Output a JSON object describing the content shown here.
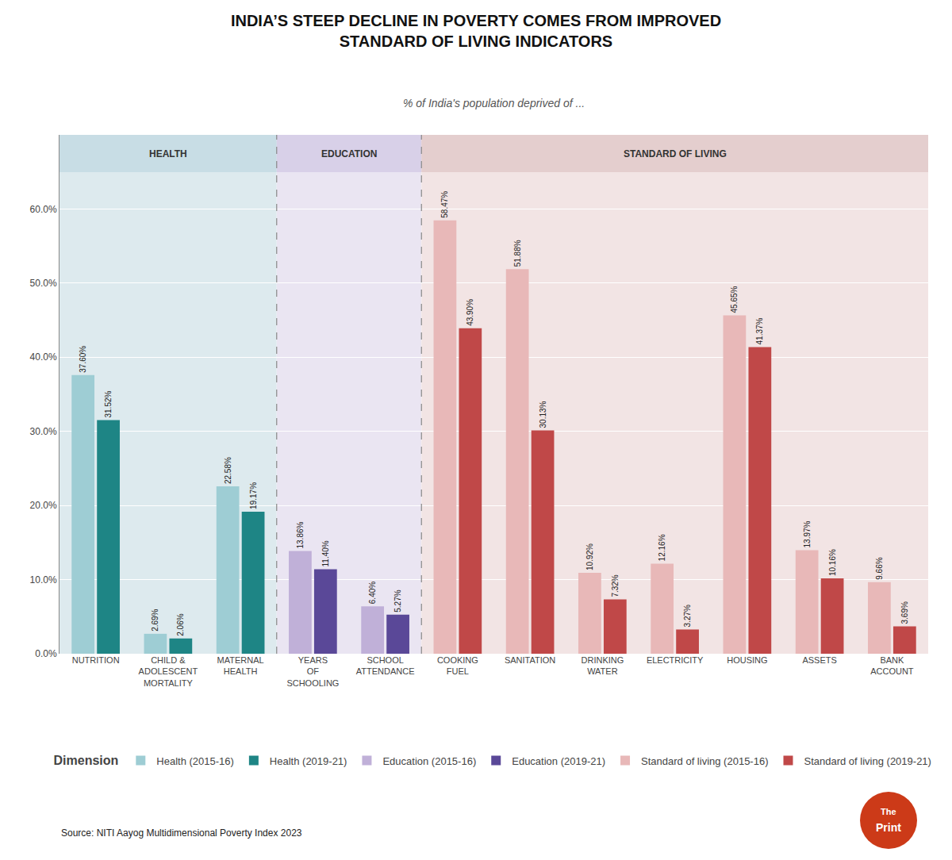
{
  "chart_data": {
    "type": "bar",
    "title": "INDIA’S STEEP DECLINE IN POVERTY COMES FROM IMPROVED\nSTANDARD OF LIVING INDICATORS",
    "subtitle": "% of India's population deprived of ...",
    "source": "Source: NITI Aayog Multidimensional Poverty Index 2023",
    "logo_text": [
      "The",
      "Print"
    ],
    "legend_title": "Dimension",
    "categories": [
      "NUTRITION",
      "CHILD &\nADOLESCENT\nMORTALITY",
      "MATERNAL\nHEALTH",
      "YEARS\nOF\nSCHOOLING",
      "SCHOOL\nATTENDANCE",
      "COOKING\nFUEL",
      "SANITATION",
      "DRINKING\nWATER",
      "ELECTRICITY",
      "HOUSING",
      "ASSETS",
      "BANK\nACCOUNT"
    ],
    "series": [
      {
        "name": "Health (2015-16)",
        "color": "#9ecdd4",
        "values": [
          37.6,
          2.69,
          22.58,
          null,
          null,
          null,
          null,
          null,
          null,
          null,
          null,
          null
        ],
        "value_labels": [
          "37.60%",
          "2.69%",
          "22.58%",
          null,
          null,
          null,
          null,
          null,
          null,
          null,
          null,
          null
        ]
      },
      {
        "name": "Health (2019-21)",
        "color": "#1e8585",
        "values": [
          31.52,
          2.06,
          19.17,
          null,
          null,
          null,
          null,
          null,
          null,
          null,
          null,
          null
        ],
        "value_labels": [
          "31.52%",
          "2.06%",
          "19.17%",
          null,
          null,
          null,
          null,
          null,
          null,
          null,
          null,
          null
        ]
      },
      {
        "name": "Education (2015-16)",
        "color": "#c0b0d8",
        "values": [
          null,
          null,
          null,
          13.86,
          6.4,
          null,
          null,
          null,
          null,
          null,
          null,
          null
        ],
        "value_labels": [
          null,
          null,
          null,
          "13.86%",
          "6.40%",
          null,
          null,
          null,
          null,
          null,
          null,
          null
        ]
      },
      {
        "name": "Education (2019-21)",
        "color": "#5a4898",
        "values": [
          null,
          null,
          null,
          11.4,
          5.27,
          null,
          null,
          null,
          null,
          null,
          null,
          null
        ],
        "value_labels": [
          null,
          null,
          null,
          "11.40%",
          "5.27%",
          null,
          null,
          null,
          null,
          null,
          null,
          null
        ]
      },
      {
        "name": "Standard of living (2015-16)",
        "color": "#e8b8b8",
        "values": [
          null,
          null,
          null,
          null,
          null,
          58.47,
          51.88,
          10.92,
          12.16,
          45.65,
          13.97,
          9.66
        ],
        "value_labels": [
          null,
          null,
          null,
          null,
          null,
          "58.47%",
          "51.88%",
          "10.92%",
          "12.16%",
          "45.65%",
          "13.97%",
          "9.66%"
        ]
      },
      {
        "name": "Standard of living (2019-21)",
        "color": "#c04848",
        "values": [
          null,
          null,
          null,
          null,
          null,
          43.9,
          30.13,
          7.32,
          3.27,
          41.37,
          10.16,
          3.69
        ],
        "value_labels": [
          null,
          null,
          null,
          null,
          null,
          "43.90%",
          "30.13%",
          "7.32%",
          "3.27%",
          "41.37%",
          "10.16%",
          "3.69%"
        ]
      }
    ],
    "sections": [
      {
        "label": "HEALTH",
        "color": "#ddeaee",
        "header_color": "#c8dde5"
      },
      {
        "label": "EDUCATION",
        "color": "#eae5f2",
        "header_color": "#d8d0e8"
      },
      {
        "label": "STANDARD OF LIVING",
        "color": "#f2e4e4",
        "header_color": "#e4cece"
      }
    ],
    "ylim": [
      0,
      70
    ],
    "yticks": [
      {
        "value": 0.0,
        "label": "0.0%"
      },
      {
        "value": 10.0,
        "label": "10.0%"
      },
      {
        "value": 20.0,
        "label": "20.0%"
      },
      {
        "value": 30.0,
        "label": "30.0%"
      },
      {
        "value": 40.0,
        "label": "40.0%"
      },
      {
        "value": 50.0,
        "label": "50.0%"
      },
      {
        "value": 60.0,
        "label": "60.0%"
      }
    ],
    "data_labels": true,
    "grid": true,
    "legend": "bottom"
  }
}
